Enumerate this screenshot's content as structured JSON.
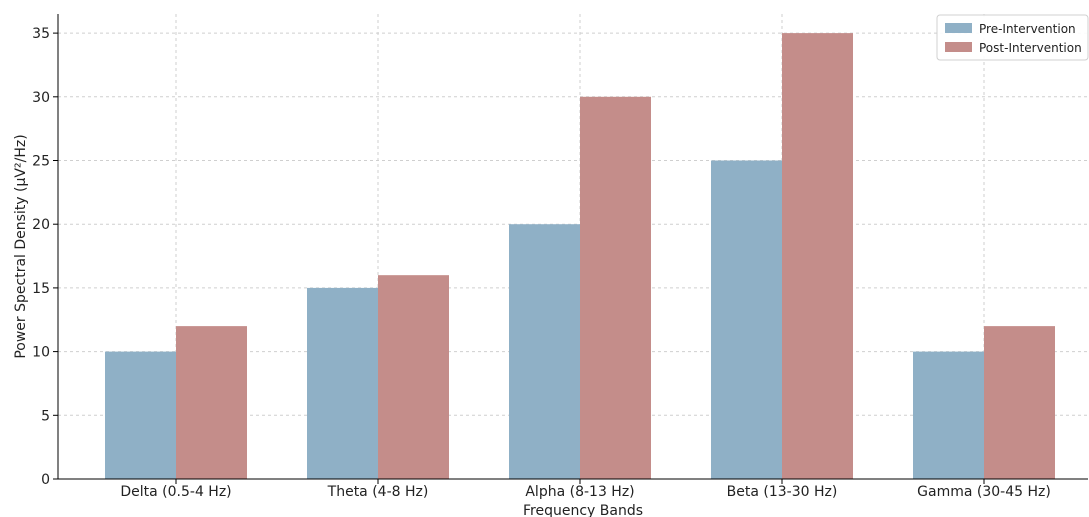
{
  "chart_data": {
    "type": "bar",
    "title": "",
    "xlabel": "Frequency Bands",
    "ylabel": "Power Spectral Density (µV²/Hz)",
    "categories": [
      "Delta (0.5-4 Hz)",
      "Theta (4-8 Hz)",
      "Alpha (8-13 Hz)",
      "Beta (13-30 Hz)",
      "Gamma (30-45 Hz)"
    ],
    "series": [
      {
        "name": "Pre-Intervention",
        "values": [
          10,
          15,
          20,
          25,
          10
        ],
        "color": "#8fb0c6"
      },
      {
        "name": "Post-Intervention",
        "values": [
          12,
          16,
          30,
          35,
          12
        ],
        "color": "#c48d8a"
      }
    ],
    "ylim": [
      0,
      36.5
    ],
    "yticks": [
      0,
      5,
      10,
      15,
      20,
      25,
      30,
      35
    ],
    "grid": true,
    "legend_position": "top-right"
  }
}
